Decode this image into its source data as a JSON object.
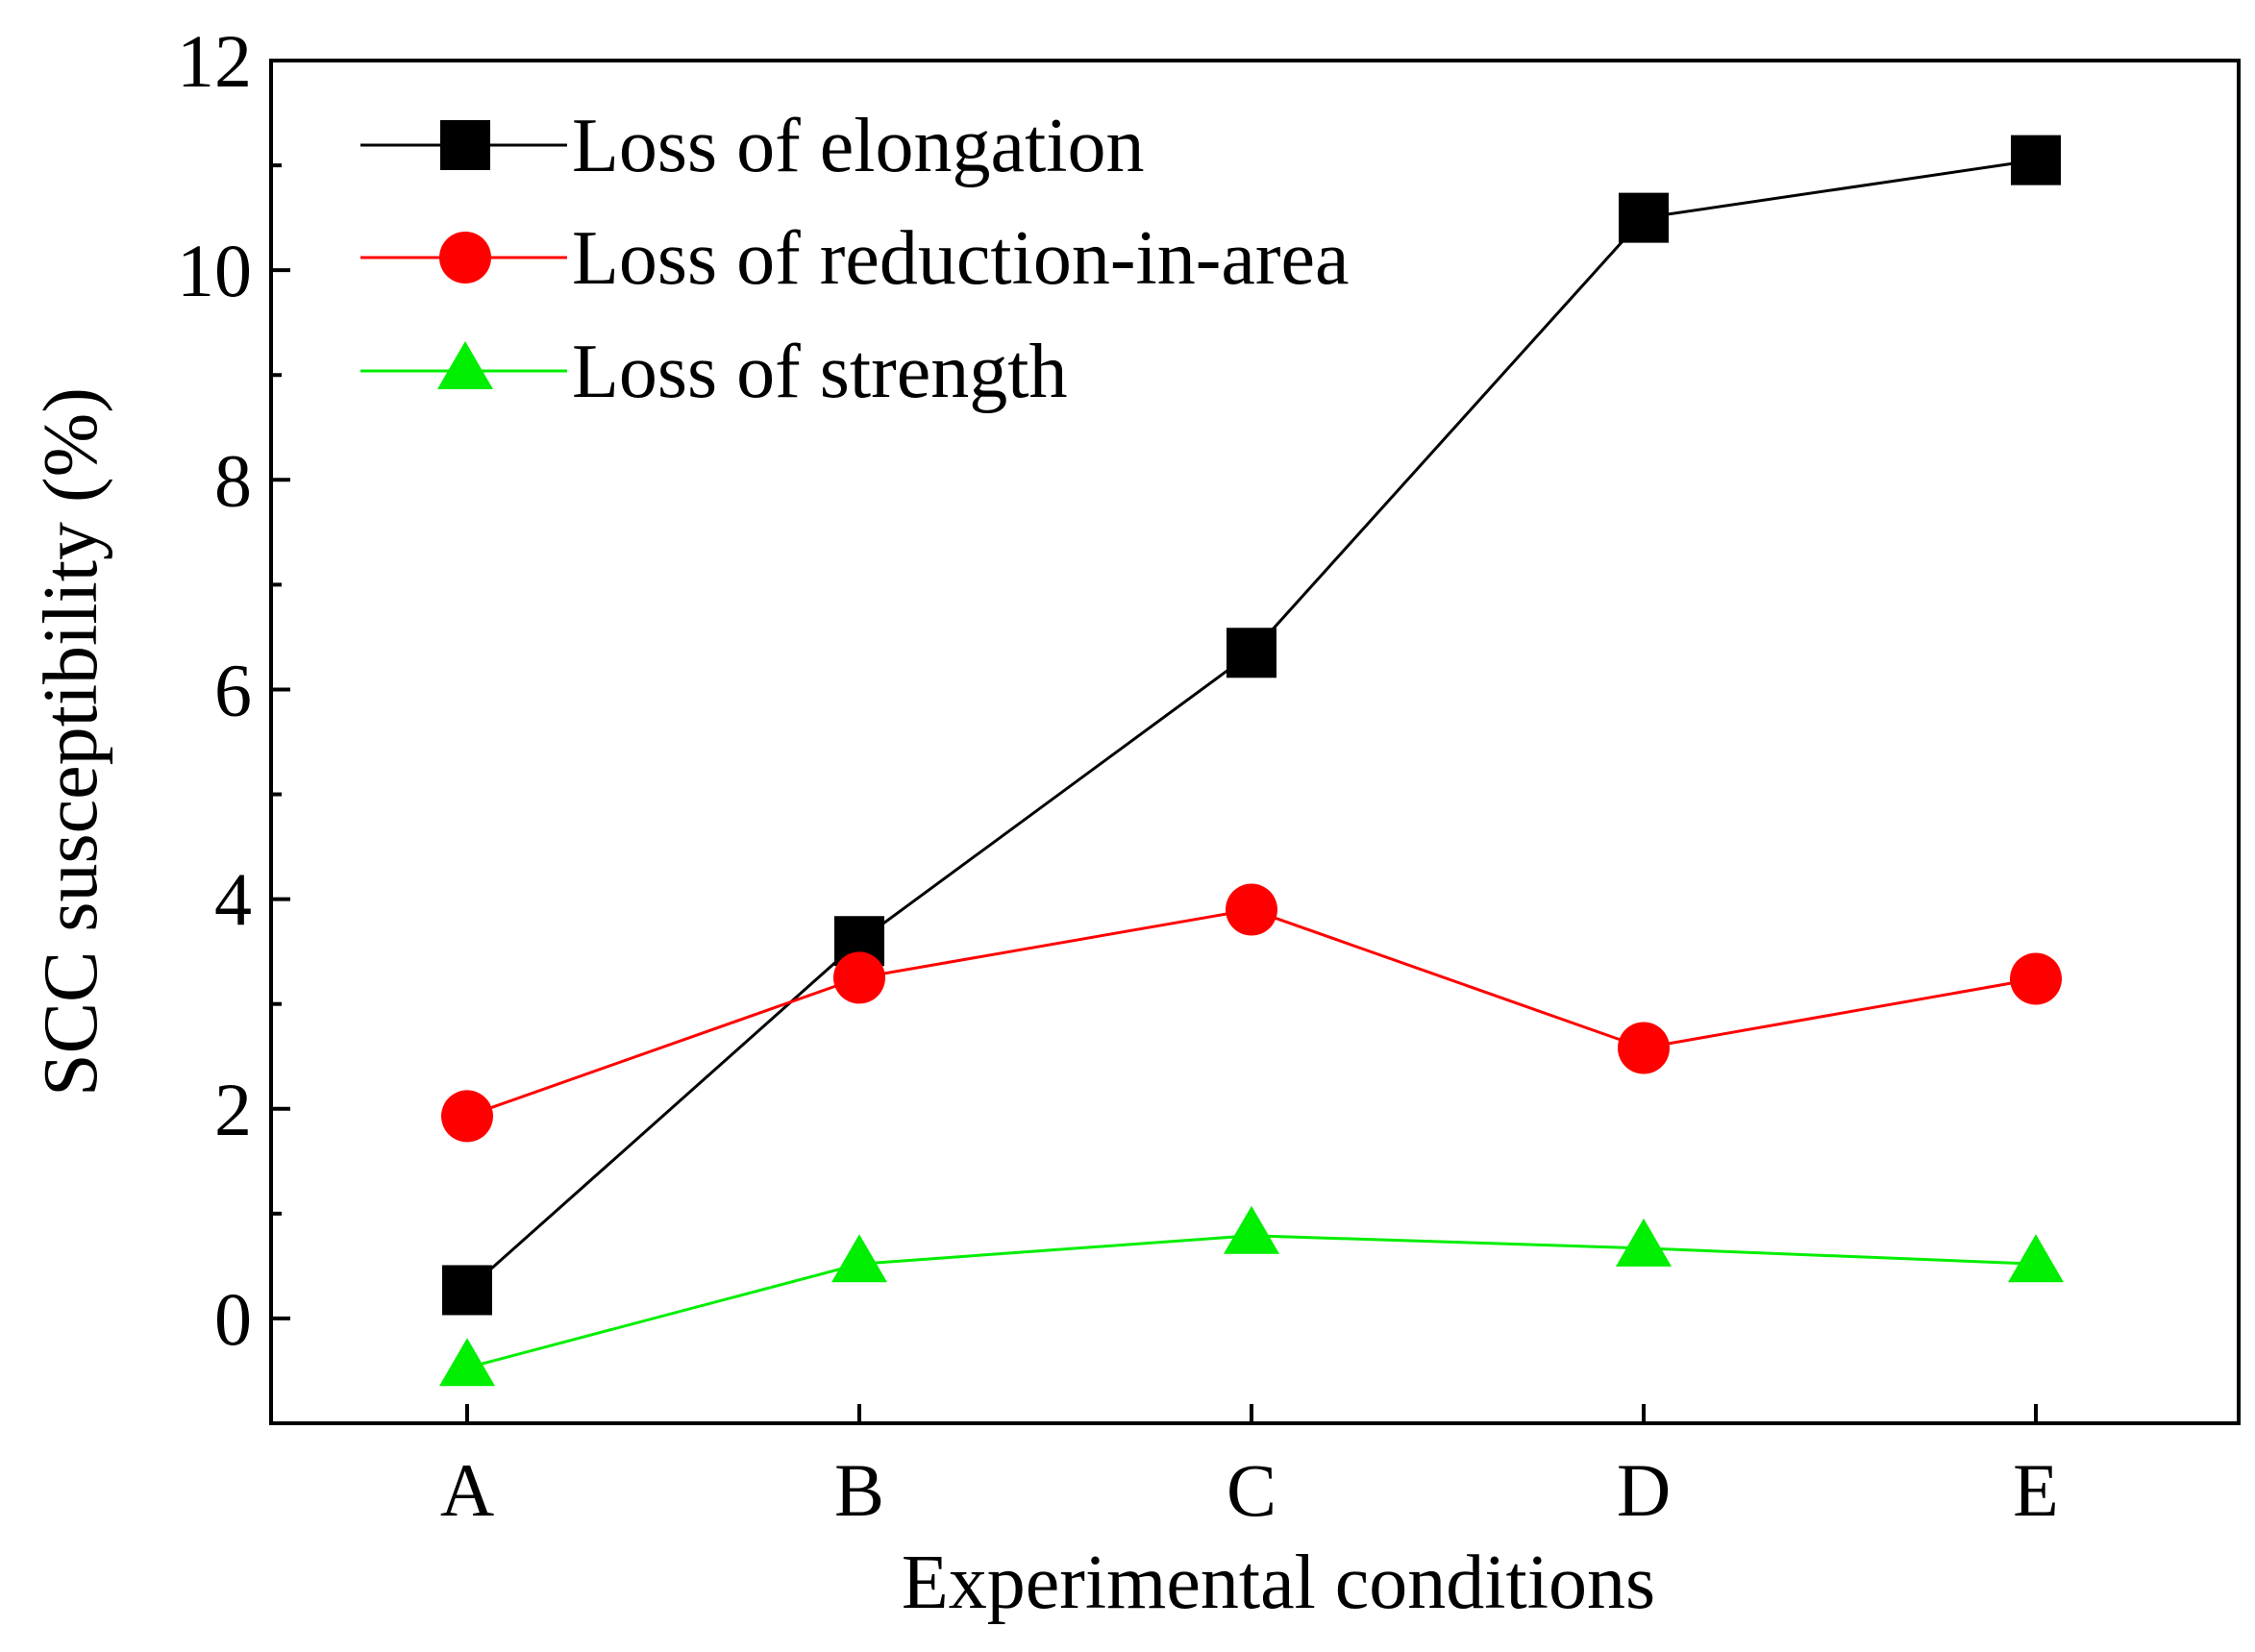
{
  "chart_data": {
    "type": "line",
    "title": "",
    "xlabel": "Experimental conditions",
    "ylabel": "SCC susceptibility (%)",
    "categories": [
      "A",
      "B",
      "C",
      "D",
      "E"
    ],
    "ylim": [
      -1,
      12
    ],
    "yticks": [
      0,
      2,
      4,
      6,
      8,
      10,
      12
    ],
    "ytick_labels": [
      "0",
      "2",
      "4",
      "6",
      "8",
      "10",
      "12"
    ],
    "legend_position": "top-left",
    "grid": false,
    "series": [
      {
        "name": "Loss of elongation",
        "color": "#000000",
        "marker": "square",
        "values": [
          0.27,
          3.6,
          6.35,
          10.5,
          11.05
        ]
      },
      {
        "name": "Loss of reduction-in-area",
        "color": "#ff0000",
        "marker": "circle",
        "values": [
          1.93,
          3.25,
          3.9,
          2.58,
          3.24
        ]
      },
      {
        "name": "Loss of strength",
        "color": "#00ee00",
        "marker": "triangle",
        "values": [
          -0.47,
          0.52,
          0.79,
          0.67,
          0.52
        ]
      }
    ]
  }
}
